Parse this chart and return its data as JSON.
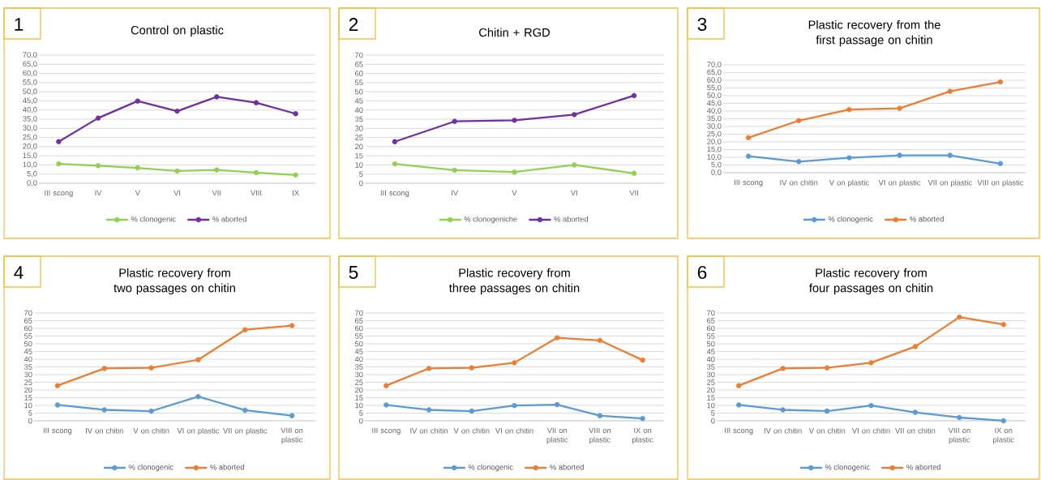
{
  "chart_data": [
    {
      "type": "line",
      "title": "Control on plastic",
      "annotations": [
        "1"
      ],
      "categories": [
        "III scong",
        "IV",
        "V",
        "VI",
        "VII",
        "VIII",
        "IX"
      ],
      "ylim": [
        0,
        70
      ],
      "yticks": [
        {
          "value": 0,
          "label": "0,0"
        },
        {
          "value": 5,
          "label": "5,0"
        },
        {
          "value": 10,
          "label": "10,0"
        },
        {
          "value": 15,
          "label": "15,0"
        },
        {
          "value": 20,
          "label": "20,0"
        },
        {
          "value": 25,
          "label": "25,0"
        },
        {
          "value": 30,
          "label": "30,0"
        },
        {
          "value": 35,
          "label": "35,0"
        },
        {
          "value": 40,
          "label": "40,0"
        },
        {
          "value": 45,
          "label": "45,0"
        },
        {
          "value": 50,
          "label": "50,0"
        },
        {
          "value": 55,
          "label": "55,0"
        },
        {
          "value": 60,
          "label": "60,0"
        },
        {
          "value": 65,
          "label": "65,0"
        },
        {
          "value": 70,
          "label": "70,0"
        }
      ],
      "grid": "y",
      "legend": "bottom",
      "marker": "circle",
      "series": [
        {
          "name": "% clonogenic",
          "color": "#92d050",
          "values": [
            10.6,
            9.6,
            8.4,
            6.7,
            7.3,
            5.8,
            4.5
          ]
        },
        {
          "name": "% aborted",
          "color": "#7030a0",
          "values": [
            22.7,
            35.6,
            44.9,
            39.4,
            47.2,
            44.0,
            38.0
          ]
        }
      ]
    },
    {
      "type": "line",
      "title": "Chitin + RGD",
      "annotations": [
        "2"
      ],
      "categories": [
        "III scong",
        "IV",
        "V",
        "VI",
        "VII"
      ],
      "ylim": [
        0,
        70
      ],
      "yticks": [
        0,
        5,
        10,
        15,
        20,
        25,
        30,
        35,
        40,
        45,
        50,
        55,
        60,
        65,
        70
      ],
      "grid": "y",
      "legend": "bottom",
      "marker": "circle",
      "series": [
        {
          "name": "% clonogeniche",
          "color": "#92d050",
          "values": [
            10.6,
            7.1,
            6.1,
            10.0,
            5.4
          ]
        },
        {
          "name": "% aborted",
          "color": "#7030a0",
          "values": [
            22.7,
            33.8,
            34.4,
            37.5,
            47.9
          ]
        }
      ]
    },
    {
      "type": "line",
      "title": "Plastic recovery from the first passage on chitin",
      "annotations": [
        "3"
      ],
      "categories": [
        "III scong",
        "IV on chitin",
        "V on plastic",
        "VI on plastic",
        "VII on plastic",
        "VIII on plastic"
      ],
      "ylim": [
        0,
        70
      ],
      "yticks": [
        {
          "value": 0,
          "label": "0,0"
        },
        {
          "value": 5,
          "label": "5,0"
        },
        {
          "value": 10,
          "label": "10,0"
        },
        {
          "value": 15,
          "label": "15,0"
        },
        {
          "value": 20,
          "label": "20,0"
        },
        {
          "value": 25,
          "label": "25,0"
        },
        {
          "value": 30,
          "label": "30,0"
        },
        {
          "value": 35,
          "label": "35,0"
        },
        {
          "value": 40,
          "label": "40,0"
        },
        {
          "value": 45,
          "label": "45,0"
        },
        {
          "value": 50,
          "label": "50,0"
        },
        {
          "value": 55,
          "label": "55,0"
        },
        {
          "value": 60,
          "label": "60,0"
        },
        {
          "value": 65,
          "label": "65,0"
        },
        {
          "value": 70,
          "label": "70,0"
        }
      ],
      "grid": "y",
      "legend": "bottom",
      "marker": "circle",
      "series": [
        {
          "name": "% clonogenic",
          "color": "#5b9bd5",
          "values": [
            10.7,
            7.2,
            9.7,
            11.3,
            11.3,
            5.9
          ]
        },
        {
          "name": "% aborted",
          "color": "#ed7d31",
          "values": [
            22.7,
            33.8,
            41.0,
            41.8,
            52.8,
            58.9
          ]
        }
      ]
    },
    {
      "type": "line",
      "title": "Plastic recovery from two passages on chitin",
      "annotations": [
        "4"
      ],
      "categories": [
        "III scong",
        "IV on chitin",
        "V on chitin",
        "VI on plastic",
        "VII on plastic",
        "VIII on plastic"
      ],
      "ylim": [
        0,
        70
      ],
      "yticks": [
        0,
        5,
        10,
        15,
        20,
        25,
        30,
        35,
        40,
        45,
        50,
        55,
        60,
        65,
        70
      ],
      "grid": "y",
      "legend": "bottom",
      "marker": "circle",
      "series": [
        {
          "name": "% clonogenic",
          "color": "#5b9bd5",
          "values": [
            10.3,
            7.1,
            6.3,
            15.7,
            6.9,
            3.3
          ]
        },
        {
          "name": "% aborted",
          "color": "#ed7d31",
          "values": [
            22.8,
            34.0,
            34.4,
            39.6,
            59.1,
            61.8
          ]
        }
      ]
    },
    {
      "type": "line",
      "title": "Plastic recovery from three passages on chitin",
      "annotations": [
        "5"
      ],
      "categories": [
        "III scong",
        "IV on chitin",
        "V on chitin",
        "VI on chitin",
        "VII on plastic",
        "VIII on plastic",
        "IX on plastic"
      ],
      "ylim": [
        0,
        70
      ],
      "yticks": [
        0,
        5,
        10,
        15,
        20,
        25,
        30,
        35,
        40,
        45,
        50,
        55,
        60,
        65,
        70
      ],
      "grid": "y",
      "legend": "bottom",
      "marker": "circle",
      "series": [
        {
          "name": "% clonogenic",
          "color": "#5b9bd5",
          "values": [
            10.3,
            7.1,
            6.3,
            9.9,
            10.5,
            3.3,
            1.5
          ]
        },
        {
          "name": "% aborted",
          "color": "#ed7d31",
          "values": [
            22.8,
            34.0,
            34.4,
            37.7,
            53.9,
            52.2,
            39.4
          ]
        }
      ]
    },
    {
      "type": "line",
      "title": "Plastic recovery from four passages on chitin",
      "annotations": [
        "6"
      ],
      "categories": [
        "III scong",
        "IV on chitin",
        "V on chitin",
        "VI on chitin",
        "VII on chitin",
        "VIII on plastic",
        "IX on plastic"
      ],
      "ylim": [
        0,
        70
      ],
      "yticks": [
        0,
        5,
        10,
        15,
        20,
        25,
        30,
        35,
        40,
        45,
        50,
        55,
        60,
        65,
        70
      ],
      "grid": "y",
      "legend": "bottom",
      "marker": "circle",
      "series": [
        {
          "name": "% clonogenic",
          "color": "#5b9bd5",
          "values": [
            10.3,
            7.1,
            6.3,
            9.9,
            5.5,
            2.1,
            0.0
          ]
        },
        {
          "name": "% aborted",
          "color": "#ed7d31",
          "values": [
            22.8,
            34.0,
            34.4,
            37.7,
            48.2,
            67.3,
            62.5
          ]
        }
      ]
    }
  ]
}
